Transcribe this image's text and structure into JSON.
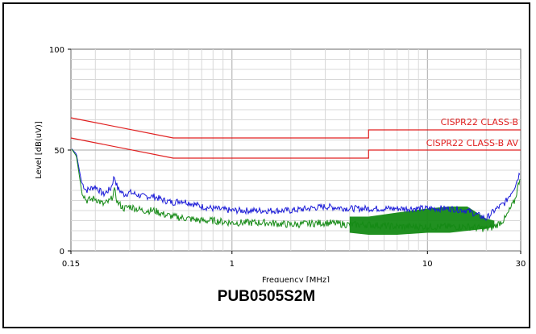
{
  "figure": {
    "caption": "PUB0505S2M"
  },
  "chart_data": {
    "type": "line",
    "title": "",
    "xlabel": "Frequency [MHz]",
    "ylabel": "Level [dB(uV)]",
    "x_scale": "log",
    "xlim": [
      0.15,
      30
    ],
    "ylim": [
      0,
      100
    ],
    "x_ticks": [
      {
        "value": 0.15,
        "label": "0.15"
      },
      {
        "value": 1,
        "label": "1"
      },
      {
        "value": 10,
        "label": "10"
      },
      {
        "value": 30,
        "label": "30"
      }
    ],
    "y_ticks": [
      {
        "value": 0,
        "label": "0"
      },
      {
        "value": 50,
        "label": "50"
      },
      {
        "value": 100,
        "label": "100"
      }
    ],
    "grid": true,
    "colors": {
      "limit": "#e02020",
      "quasi_peak": "#1a1ad8",
      "average": "#158a15",
      "grid": "#d8d8d8",
      "grid_major": "#a8a8a8"
    },
    "series": [
      {
        "name": "CISPR22 CLASS-B",
        "role": "limit",
        "x": [
          0.15,
          0.5,
          5,
          5,
          30
        ],
        "y": [
          66,
          56,
          56,
          60,
          60
        ]
      },
      {
        "name": "CISPR22 CLASS-B AV",
        "role": "limit",
        "x": [
          0.15,
          0.5,
          5,
          5,
          30
        ],
        "y": [
          56,
          46,
          46,
          50,
          50
        ]
      },
      {
        "role": "quasi_peak",
        "x": [
          0.15,
          0.16,
          0.17,
          0.18,
          0.2,
          0.22,
          0.24,
          0.25,
          0.26,
          0.28,
          0.3,
          0.35,
          0.4,
          0.45,
          0.5,
          0.55,
          0.6,
          0.7,
          0.8,
          1,
          1.5,
          2,
          3,
          4,
          5,
          7,
          10,
          13,
          16,
          20,
          22,
          25,
          28,
          30
        ],
        "y": [
          51,
          48,
          34,
          30,
          32,
          28,
          31,
          37,
          31,
          28,
          29,
          27,
          27,
          25,
          24,
          25,
          24,
          22,
          21,
          20,
          20,
          20,
          22,
          21,
          21,
          21,
          21,
          21,
          20,
          16,
          20,
          24,
          32,
          40
        ]
      },
      {
        "role": "average",
        "x": [
          0.15,
          0.16,
          0.17,
          0.18,
          0.2,
          0.22,
          0.24,
          0.25,
          0.26,
          0.28,
          0.3,
          0.35,
          0.4,
          0.45,
          0.5,
          0.6,
          0.7,
          0.8,
          1,
          1.5,
          2,
          3,
          4,
          5,
          7,
          10,
          13,
          16,
          20,
          22,
          25,
          28,
          30
        ],
        "y": [
          51,
          47,
          30,
          25,
          26,
          23,
          25,
          30,
          24,
          21,
          22,
          20,
          20,
          18,
          17,
          16,
          15,
          15,
          14,
          14,
          13,
          14,
          13,
          13,
          12,
          12,
          12,
          12,
          11,
          12,
          16,
          25,
          38
        ],
        "envelope": {
          "x": [
            4,
            5,
            7,
            10,
            13,
            16,
            20,
            22
          ],
          "y_low": [
            9,
            8,
            8,
            9,
            9,
            10,
            11,
            12
          ],
          "y_high": [
            17,
            17,
            19,
            21,
            22,
            22,
            16,
            15
          ]
        }
      }
    ]
  }
}
